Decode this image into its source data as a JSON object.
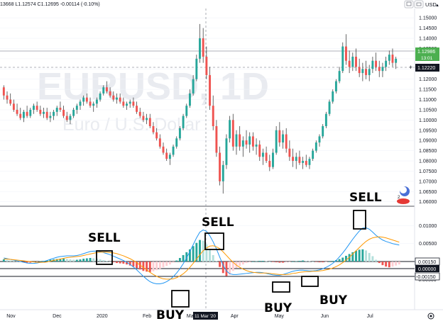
{
  "header": {
    "ohlc_text": "13668  L1.12574  C1.12695  -0.00114 (-0.10%)",
    "currency": "USD",
    "arrow_glyph": "▲"
  },
  "watermark": {
    "symbol": "EURUSD, 1D",
    "description": "Euro / U.S. Dollar"
  },
  "price_tags": {
    "last_price": "1.12986",
    "countdown": "13:01",
    "cursor_price": "1.12220",
    "cursor_plus": "+"
  },
  "macd_tags": {
    "upper": "0.00150",
    "zero": "0.00000",
    "lower": "-0.00150"
  },
  "crosshair_date": "11 Mar '20",
  "colors": {
    "up": "#26a69a",
    "down": "#ef5350",
    "wick": "#444444",
    "macd": "#2196f3",
    "signal": "#ff9800",
    "hist_up_strong": "#26a69a",
    "hist_up_weak": "#b2dfdb",
    "hist_down_strong": "#ef5350",
    "hist_down_weak": "#ffcdd2",
    "tag_green": "#4caf50",
    "tag_dark": "#131722"
  },
  "annotations": [
    {
      "label": "SELL"
    },
    {
      "label": "SELL"
    },
    {
      "label": "SELL"
    },
    {
      "label": "BUY"
    },
    {
      "label": "BUY"
    },
    {
      "label": "BUY"
    }
  ],
  "chart_data": [
    {
      "type": "candlestick",
      "title": "EURUSD, 1D",
      "subtitle": "Euro / U.S. Dollar",
      "ylim": [
        1.0585,
        1.1525
      ],
      "y_ticks": [
        1.15,
        1.145,
        1.14,
        1.135,
        1.13,
        1.125,
        1.12,
        1.115,
        1.11,
        1.105,
        1.1,
        1.095,
        1.09,
        1.085,
        1.08,
        1.075,
        1.07,
        1.065,
        1.06
      ],
      "x_ticks": [
        "Nov",
        "Dec",
        "2020",
        "Feb",
        "Mar",
        "Apr",
        "May",
        "Jun",
        "Jul"
      ],
      "ohlc": [
        [
          1.116,
          1.117,
          1.11,
          1.112
        ],
        [
          1.112,
          1.114,
          1.108,
          1.11
        ],
        [
          1.11,
          1.113,
          1.107,
          1.108
        ],
        [
          1.108,
          1.11,
          1.104,
          1.105
        ],
        [
          1.105,
          1.108,
          1.102,
          1.103
        ],
        [
          1.103,
          1.106,
          1.1,
          1.101
        ],
        [
          1.101,
          1.105,
          1.099,
          1.104
        ],
        [
          1.104,
          1.107,
          1.101,
          1.102
        ],
        [
          1.102,
          1.106,
          1.101,
          1.105
        ],
        [
          1.105,
          1.108,
          1.103,
          1.107
        ],
        [
          1.107,
          1.109,
          1.104,
          1.105
        ],
        [
          1.105,
          1.107,
          1.102,
          1.103
        ],
        [
          1.103,
          1.106,
          1.101,
          1.104
        ],
        [
          1.104,
          1.106,
          1.1,
          1.101
        ],
        [
          1.101,
          1.104,
          1.099,
          1.102
        ],
        [
          1.102,
          1.105,
          1.1,
          1.104
        ],
        [
          1.104,
          1.107,
          1.102,
          1.106
        ],
        [
          1.106,
          1.109,
          1.104,
          1.105
        ],
        [
          1.105,
          1.107,
          1.101,
          1.102
        ],
        [
          1.102,
          1.104,
          1.099,
          1.1
        ],
        [
          1.1,
          1.103,
          1.098,
          1.102
        ],
        [
          1.102,
          1.106,
          1.101,
          1.105
        ],
        [
          1.105,
          1.108,
          1.103,
          1.107
        ],
        [
          1.107,
          1.11,
          1.105,
          1.109
        ],
        [
          1.109,
          1.112,
          1.107,
          1.111
        ],
        [
          1.111,
          1.113,
          1.108,
          1.109
        ],
        [
          1.109,
          1.111,
          1.106,
          1.107
        ],
        [
          1.107,
          1.109,
          1.104,
          1.108
        ],
        [
          1.108,
          1.111,
          1.106,
          1.11
        ],
        [
          1.11,
          1.114,
          1.109,
          1.113
        ],
        [
          1.113,
          1.117,
          1.112,
          1.116
        ],
        [
          1.116,
          1.119,
          1.113,
          1.114
        ],
        [
          1.114,
          1.116,
          1.111,
          1.112
        ],
        [
          1.112,
          1.114,
          1.109,
          1.11
        ],
        [
          1.11,
          1.113,
          1.108,
          1.111
        ],
        [
          1.111,
          1.113,
          1.108,
          1.109
        ],
        [
          1.109,
          1.111,
          1.106,
          1.107
        ],
        [
          1.107,
          1.109,
          1.105,
          1.108
        ],
        [
          1.108,
          1.11,
          1.106,
          1.109
        ],
        [
          1.109,
          1.111,
          1.106,
          1.107
        ],
        [
          1.107,
          1.109,
          1.103,
          1.104
        ],
        [
          1.104,
          1.106,
          1.101,
          1.102
        ],
        [
          1.102,
          1.104,
          1.099,
          1.1
        ],
        [
          1.1,
          1.103,
          1.098,
          1.101
        ],
        [
          1.101,
          1.103,
          1.096,
          1.097
        ],
        [
          1.097,
          1.099,
          1.093,
          1.094
        ],
        [
          1.094,
          1.096,
          1.09,
          1.091
        ],
        [
          1.091,
          1.093,
          1.086,
          1.087
        ],
        [
          1.087,
          1.089,
          1.083,
          1.084
        ],
        [
          1.084,
          1.086,
          1.08,
          1.081
        ],
        [
          1.081,
          1.084,
          1.078,
          1.083
        ],
        [
          1.083,
          1.088,
          1.082,
          1.087
        ],
        [
          1.087,
          1.092,
          1.086,
          1.091
        ],
        [
          1.091,
          1.097,
          1.09,
          1.096
        ],
        [
          1.096,
          1.103,
          1.095,
          1.102
        ],
        [
          1.102,
          1.108,
          1.101,
          1.107
        ],
        [
          1.107,
          1.115,
          1.106,
          1.113
        ],
        [
          1.113,
          1.122,
          1.112,
          1.12
        ],
        [
          1.12,
          1.132,
          1.119,
          1.13
        ],
        [
          1.13,
          1.147,
          1.128,
          1.14
        ],
        [
          1.14,
          1.145,
          1.128,
          1.131
        ],
        [
          1.131,
          1.136,
          1.12,
          1.122
        ],
        [
          1.122,
          1.126,
          1.105,
          1.107
        ],
        [
          1.107,
          1.112,
          1.095,
          1.097
        ],
        [
          1.097,
          1.1,
          1.082,
          1.084
        ],
        [
          1.084,
          1.087,
          1.068,
          1.07
        ],
        [
          1.07,
          1.08,
          1.064,
          1.078
        ],
        [
          1.078,
          1.093,
          1.076,
          1.091
        ],
        [
          1.091,
          1.102,
          1.089,
          1.1
        ],
        [
          1.1,
          1.103,
          1.085,
          1.087
        ],
        [
          1.087,
          1.095,
          1.083,
          1.093
        ],
        [
          1.093,
          1.097,
          1.085,
          1.087
        ],
        [
          1.087,
          1.092,
          1.082,
          1.09
        ],
        [
          1.09,
          1.095,
          1.086,
          1.088
        ],
        [
          1.088,
          1.094,
          1.084,
          1.092
        ],
        [
          1.092,
          1.094,
          1.085,
          1.087
        ],
        [
          1.087,
          1.091,
          1.083,
          1.088
        ],
        [
          1.088,
          1.09,
          1.08,
          1.082
        ],
        [
          1.082,
          1.086,
          1.078,
          1.084
        ],
        [
          1.084,
          1.087,
          1.079,
          1.08
        ],
        [
          1.08,
          1.083,
          1.075,
          1.077
        ],
        [
          1.077,
          1.086,
          1.076,
          1.084
        ],
        [
          1.084,
          1.097,
          1.083,
          1.095
        ],
        [
          1.095,
          1.099,
          1.087,
          1.089
        ],
        [
          1.089,
          1.095,
          1.086,
          1.093
        ],
        [
          1.093,
          1.096,
          1.084,
          1.086
        ],
        [
          1.086,
          1.09,
          1.08,
          1.082
        ],
        [
          1.082,
          1.086,
          1.077,
          1.08
        ],
        [
          1.08,
          1.084,
          1.076,
          1.082
        ],
        [
          1.082,
          1.085,
          1.078,
          1.079
        ],
        [
          1.079,
          1.082,
          1.076,
          1.08
        ],
        [
          1.08,
          1.083,
          1.077,
          1.078
        ],
        [
          1.078,
          1.082,
          1.076,
          1.081
        ],
        [
          1.081,
          1.086,
          1.08,
          1.085
        ],
        [
          1.085,
          1.09,
          1.084,
          1.089
        ],
        [
          1.089,
          1.093,
          1.087,
          1.092
        ],
        [
          1.092,
          1.098,
          1.091,
          1.097
        ],
        [
          1.097,
          1.104,
          1.096,
          1.103
        ],
        [
          1.103,
          1.11,
          1.102,
          1.109
        ],
        [
          1.109,
          1.115,
          1.108,
          1.114
        ],
        [
          1.114,
          1.12,
          1.113,
          1.119
        ],
        [
          1.119,
          1.126,
          1.118,
          1.124
        ],
        [
          1.124,
          1.138,
          1.123,
          1.136
        ],
        [
          1.136,
          1.142,
          1.127,
          1.129
        ],
        [
          1.129,
          1.134,
          1.123,
          1.126
        ],
        [
          1.126,
          1.133,
          1.124,
          1.131
        ],
        [
          1.131,
          1.135,
          1.124,
          1.126
        ],
        [
          1.126,
          1.13,
          1.121,
          1.123
        ],
        [
          1.123,
          1.128,
          1.119,
          1.125
        ],
        [
          1.125,
          1.129,
          1.12,
          1.122
        ],
        [
          1.122,
          1.127,
          1.119,
          1.125
        ],
        [
          1.125,
          1.131,
          1.123,
          1.129
        ],
        [
          1.129,
          1.133,
          1.124,
          1.126
        ],
        [
          1.126,
          1.129,
          1.121,
          1.124
        ],
        [
          1.124,
          1.128,
          1.121,
          1.126
        ],
        [
          1.126,
          1.131,
          1.124,
          1.129
        ],
        [
          1.129,
          1.134,
          1.127,
          1.132
        ],
        [
          1.132,
          1.135,
          1.126,
          1.128
        ],
        [
          1.128,
          1.131,
          1.125,
          1.13
        ]
      ]
    },
    {
      "type": "macd",
      "ylim": [
        -0.0128,
        0.0148
      ],
      "y_ticks": [
        0.01,
        0.005,
        -0.005
      ],
      "tagged_levels": [
        0.0015,
        0.0,
        -0.0015
      ],
      "histogram": [
        0.0006,
        0.0005,
        0.0003,
        0.0002,
        0.0001,
        -0.0001,
        -0.0002,
        -0.0003,
        -0.0003,
        -0.0002,
        -0.0001,
        0.0001,
        0.0002,
        0.0003,
        0.0005,
        0.0006,
        0.0007,
        0.0008,
        0.0008,
        0.0007,
        0.0006,
        0.0005,
        0.0005,
        0.0006,
        0.0008,
        0.0009,
        0.001,
        0.0009,
        0.0008,
        0.0006,
        0.0004,
        0.0002,
        0.0,
        -0.0002,
        -0.0004,
        -0.0005,
        -0.0006,
        -0.0008,
        -0.0011,
        -0.0014,
        -0.0018,
        -0.0022,
        -0.0026,
        -0.0028,
        -0.0029,
        -0.0027,
        -0.0024,
        -0.002,
        -0.0016,
        -0.0012,
        -0.0008,
        -0.0003,
        0.0003,
        0.001,
        0.0018,
        0.0026,
        0.0034,
        0.0043,
        0.0052,
        0.006,
        0.0058,
        0.0048,
        0.0034,
        0.0018,
        0.0002,
        -0.0015,
        -0.0032,
        -0.004,
        -0.0036,
        -0.0026,
        -0.0018,
        -0.0012,
        -0.0008,
        -0.0004,
        -0.0002,
        0.0,
        0.0001,
        0.0002,
        0.0002,
        0.0001,
        0.0,
        -0.0001,
        -0.0002,
        -0.0003,
        -0.0003,
        -0.0002,
        -0.0001,
        0.0,
        0.0001,
        0.0002,
        0.0003,
        0.0002,
        0.0001,
        0.0,
        -0.0001,
        -0.0002,
        -0.0002,
        -0.0001,
        0.0,
        0.0002,
        0.0004,
        0.0007,
        0.0011,
        0.0016,
        0.0021,
        0.0026,
        0.003,
        0.0033,
        0.0034,
        0.0031,
        0.0024,
        0.0015,
        0.0005,
        -0.0004,
        -0.001,
        -0.0014,
        -0.0016,
        -0.0014,
        -0.0011,
        -0.0008
      ],
      "macd": [
        0.001,
        0.0008,
        0.0006,
        0.0004,
        0.0002,
        0.0,
        -0.0002,
        -0.0004,
        -0.0005,
        -0.0005,
        -0.0004,
        -0.0002,
        0.0,
        0.0003,
        0.0006,
        0.0009,
        0.0012,
        0.0014,
        0.0015,
        0.0016,
        0.0016,
        0.0016,
        0.0017,
        0.0019,
        0.0022,
        0.0025,
        0.0028,
        0.0029,
        0.0029,
        0.0027,
        0.0025,
        0.0022,
        0.0019,
        0.0015,
        0.0011,
        0.0007,
        0.0003,
        -0.0002,
        -0.0008,
        -0.0015,
        -0.0023,
        -0.0032,
        -0.0041,
        -0.0049,
        -0.0056,
        -0.006,
        -0.0062,
        -0.0062,
        -0.006,
        -0.0056,
        -0.005,
        -0.0042,
        -0.0032,
        -0.002,
        -0.0006,
        0.001,
        0.0028,
        0.0047,
        0.0066,
        0.0082,
        0.0088,
        0.0084,
        0.0072,
        0.0055,
        0.0035,
        0.0012,
        -0.001,
        -0.0026,
        -0.0034,
        -0.0036,
        -0.0036,
        -0.0035,
        -0.0034,
        -0.0033,
        -0.0032,
        -0.0031,
        -0.003,
        -0.003,
        -0.0031,
        -0.0033,
        -0.0035,
        -0.0037,
        -0.0038,
        -0.0038,
        -0.0036,
        -0.0033,
        -0.003,
        -0.0027,
        -0.0025,
        -0.0024,
        -0.0024,
        -0.0025,
        -0.0026,
        -0.0026,
        -0.0025,
        -0.0023,
        -0.002,
        -0.0016,
        -0.0011,
        -0.0005,
        0.0003,
        0.0013,
        0.0024,
        0.0036,
        0.0049,
        0.0062,
        0.0074,
        0.0085,
        0.0093,
        0.0094,
        0.009,
        0.0082,
        0.0073,
        0.0066,
        0.006,
        0.0056,
        0.0053,
        0.005,
        0.0048,
        0.0046
      ],
      "signal": [
        0.0007,
        0.0007,
        0.0006,
        0.0005,
        0.0004,
        0.0003,
        0.0002,
        0.0001,
        0.0,
        -0.0001,
        -0.0002,
        -0.0002,
        -0.0002,
        -0.0001,
        0.0001,
        0.0003,
        0.0005,
        0.0007,
        0.0009,
        0.0011,
        0.0012,
        0.0013,
        0.0014,
        0.0015,
        0.0017,
        0.0019,
        0.0021,
        0.0023,
        0.0025,
        0.0026,
        0.0026,
        0.0026,
        0.0025,
        0.0024,
        0.0022,
        0.0019,
        0.0016,
        0.0012,
        0.0008,
        0.0003,
        -0.0003,
        -0.001,
        -0.0016,
        -0.0023,
        -0.003,
        -0.0036,
        -0.0041,
        -0.0045,
        -0.0048,
        -0.0049,
        -0.0049,
        -0.0048,
        -0.0045,
        -0.004,
        -0.0034,
        -0.0026,
        -0.0016,
        -0.0005,
        0.0007,
        0.0019,
        0.003,
        0.0038,
        0.0043,
        0.0044,
        0.0041,
        0.0036,
        0.0027,
        0.0017,
        0.0007,
        -0.0002,
        -0.001,
        -0.0016,
        -0.0021,
        -0.0025,
        -0.0028,
        -0.003,
        -0.0031,
        -0.0032,
        -0.0032,
        -0.0032,
        -0.0033,
        -0.0034,
        -0.0035,
        -0.0036,
        -0.0036,
        -0.0036,
        -0.0035,
        -0.0033,
        -0.0032,
        -0.003,
        -0.0029,
        -0.0028,
        -0.0028,
        -0.0027,
        -0.0027,
        -0.0026,
        -0.0025,
        -0.0023,
        -0.0021,
        -0.0018,
        -0.0014,
        -0.0009,
        -0.0003,
        0.0004,
        0.0012,
        0.0021,
        0.003,
        0.0039,
        0.0048,
        0.0056,
        0.0062,
        0.0066,
        0.0068,
        0.0069,
        0.0068,
        0.0066,
        0.0063,
        0.006,
        0.0057,
        0.0054
      ]
    }
  ]
}
